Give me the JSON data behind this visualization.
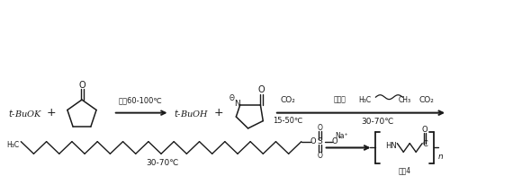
{
  "bg_color": "#ffffff",
  "line_color": "#1a1a1a",
  "fig_width": 5.9,
  "fig_height": 1.96,
  "dpi": 100,
  "texts": {
    "tbuok": "t-BuOK",
    "tbuoh": "t-BuOH",
    "condition1": "真窒60-100℃",
    "co2": "CO₂",
    "condition_bot1": "15-50℃",
    "shilayou": "石腊油",
    "ch3": "CH₃",
    "h3c": "H₃C",
    "condition2": "30-70℃",
    "n_label": "n",
    "nylon4": "尼龙4",
    "O": "O",
    "N": "N",
    "HN": "HN",
    "S": "S",
    "Na": "Na⁺",
    "h3c_row2": "H₃C"
  }
}
